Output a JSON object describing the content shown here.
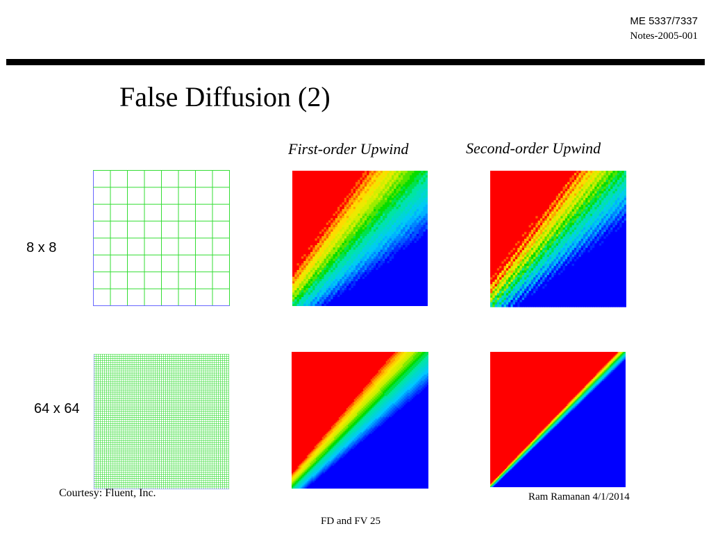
{
  "header": {
    "course": "ME 5337/7337",
    "notes": "Notes-2005-001"
  },
  "title": "False Diffusion (2)",
  "columns": {
    "first": "First-order Upwind",
    "second": "Second-order Upwind"
  },
  "rows": {
    "coarse": "8 x 8",
    "fine": "64 x 64"
  },
  "footer": {
    "courtesy": "Courtesy: Fluent, Inc.",
    "author": "Ram Ramanan 4/1/2014",
    "slide": "FD and FV 25"
  },
  "colors": {
    "rule": "#000000",
    "grid_line": "#33dd33",
    "grid_axis": "#6666ff",
    "contour_hot": "#ff0000",
    "contour_cold": "#0000ff"
  },
  "meshes": {
    "coarse_cells": 8,
    "fine_cells": 64
  }
}
